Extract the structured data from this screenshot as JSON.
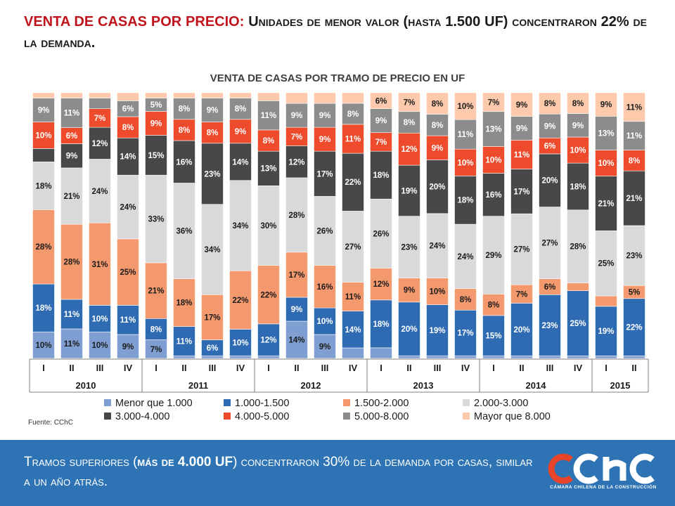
{
  "header": {
    "title_bold": "VENTA DE CASAS POR PRECIO:",
    "title_rest": "Unidades de menor valor (hasta 1.500 UF) concentraron 22% de la demanda."
  },
  "footer": {
    "text_pre": "Tramos superiores (",
    "text_bold": "más de 4.000 UF",
    "text_post": ") concentraron 30% de la demanda por casas, similar a un año atrás.",
    "logo_text": "cchc",
    "logo_caption": "CÁMARA CHILENA DE LA CONSTRUCCIÓN"
  },
  "colors": {
    "footer_band": "#2e74b5",
    "heading_accent": "#c0141c"
  },
  "chart_data": {
    "type": "bar",
    "stacked": true,
    "title": "VENTA DE CASAS POR TRAMO DE PRECIO EN UF",
    "source": "Fuente: CChC",
    "categories": [
      "I",
      "II",
      "III",
      "IV",
      "I",
      "II",
      "III",
      "IV",
      "I",
      "II",
      "III",
      "IV",
      "I",
      "II",
      "III",
      "IV",
      "I",
      "II",
      "III",
      "IV",
      "I",
      "II"
    ],
    "year_groups": [
      {
        "year": "2010",
        "count": 4
      },
      {
        "year": "2011",
        "count": 4
      },
      {
        "year": "2012",
        "count": 4
      },
      {
        "year": "2013",
        "count": 4
      },
      {
        "year": "2014",
        "count": 4
      },
      {
        "year": "2015",
        "count": 2
      }
    ],
    "ylim": [
      0,
      100
    ],
    "legend_position": "bottom",
    "series": [
      {
        "name": "Menor que 1.000",
        "color": "#7f9fd3",
        "values": [
          10,
          11,
          10,
          9,
          7,
          1,
          1,
          1,
          1,
          14,
          9,
          4,
          4,
          1,
          1,
          1,
          1,
          1,
          1,
          1,
          1,
          1
        ],
        "labels": [
          "10%",
          "11%",
          "10%",
          "9%",
          "7%",
          "",
          "",
          "",
          "",
          "14%",
          "9%",
          "",
          "",
          "",
          "",
          "",
          "",
          "",
          "",
          "",
          "",
          ""
        ]
      },
      {
        "name": "1.000-1.500",
        "color": "#2e6bb3",
        "values": [
          18,
          11,
          10,
          11,
          8,
          11,
          6,
          10,
          12,
          9,
          10,
          14,
          18,
          20,
          19,
          17,
          15,
          20,
          23,
          25,
          19,
          22
        ],
        "labels": [
          "18%",
          "11%",
          "10%",
          "11%",
          "8%",
          "11%",
          "6%",
          "10%",
          "12%",
          "9%",
          "10%",
          "14%",
          "18%",
          "20%",
          "19%",
          "17%",
          "15%",
          "20%",
          "23%",
          "25%",
          "19%",
          "22%"
        ]
      },
      {
        "name": "1.500-2.000",
        "color": "#f4996e",
        "values": [
          28,
          28,
          31,
          25,
          21,
          18,
          17,
          22,
          22,
          17,
          16,
          11,
          12,
          9,
          10,
          8,
          8,
          7,
          6,
          3,
          4,
          5
        ],
        "labels": [
          "28%",
          "28%",
          "31%",
          "25%",
          "21%",
          "18%",
          "17%",
          "22%",
          "22%",
          "17%",
          "16%",
          "11%",
          "12%",
          "9%",
          "10%",
          "8%",
          "8%",
          "7%",
          "6%",
          "",
          "",
          "5%"
        ]
      },
      {
        "name": "2.000-3.000",
        "color": "#d9d9d9",
        "values": [
          18,
          21,
          24,
          24,
          33,
          36,
          34,
          34,
          30,
          28,
          26,
          27,
          26,
          23,
          24,
          24,
          29,
          27,
          27,
          28,
          25,
          23
        ],
        "labels": [
          "18%",
          "21%",
          "24%",
          "24%",
          "33%",
          "36%",
          "34%",
          "34%",
          "30%",
          "28%",
          "26%",
          "27%",
          "26%",
          "23%",
          "24%",
          "24%",
          "29%",
          "27%",
          "27%",
          "28%",
          "25%",
          "23%"
        ]
      },
      {
        "name": "3.000-4.000",
        "color": "#484848",
        "values": [
          5,
          9,
          12,
          14,
          15,
          16,
          23,
          14,
          13,
          12,
          17,
          22,
          18,
          19,
          20,
          18,
          16,
          17,
          20,
          18,
          21,
          21
        ],
        "labels": [
          "",
          "9%",
          "12%",
          "14%",
          "15%",
          "16%",
          "23%",
          "14%",
          "13%",
          "12%",
          "17%",
          "22%",
          "18%",
          "19%",
          "20%",
          "18%",
          "16%",
          "17%",
          "20%",
          "18%",
          "21%",
          "21%"
        ]
      },
      {
        "name": "4.000-5.000",
        "color": "#ee4a2c",
        "values": [
          10,
          6,
          7,
          8,
          9,
          8,
          8,
          9,
          8,
          7,
          9,
          11,
          7,
          12,
          9,
          10,
          10,
          11,
          6,
          10,
          10,
          8
        ],
        "labels": [
          "10%",
          "6%",
          "7%",
          "8%",
          "9%",
          "8%",
          "8%",
          "9%",
          "8%",
          "7%",
          "9%",
          "11%",
          "7%",
          "12%",
          "9%",
          "10%",
          "10%",
          "11%",
          "6%",
          "10%",
          "10%",
          "8%"
        ]
      },
      {
        "name": "5.000-8.000",
        "color": "#8c8c8c",
        "values": [
          9,
          11,
          4,
          6,
          5,
          8,
          9,
          8,
          11,
          9,
          9,
          8,
          9,
          8,
          8,
          11,
          13,
          9,
          9,
          9,
          13,
          11
        ],
        "labels": [
          "9%",
          "11%",
          "",
          "6%",
          "5%",
          "8%",
          "9%",
          "8%",
          "11%",
          "9%",
          "9%",
          "8%",
          "9%",
          "8%",
          "8%",
          "11%",
          "13%",
          "9%",
          "9%",
          "9%",
          "13%",
          "11%"
        ]
      },
      {
        "name": "Mayor que 8.000",
        "color": "#fcc9ad",
        "values": [
          2,
          2,
          2,
          3,
          2,
          2,
          2,
          2,
          3,
          4,
          4,
          4,
          6,
          7,
          8,
          10,
          7,
          9,
          8,
          8,
          9,
          11
        ],
        "labels": [
          "",
          "",
          "",
          "",
          "",
          "",
          "",
          "",
          "",
          "",
          "",
          "",
          "6%",
          "7%",
          "8%",
          "10%",
          "7%",
          "9%",
          "8%",
          "8%",
          "9%",
          "11%"
        ]
      }
    ]
  }
}
